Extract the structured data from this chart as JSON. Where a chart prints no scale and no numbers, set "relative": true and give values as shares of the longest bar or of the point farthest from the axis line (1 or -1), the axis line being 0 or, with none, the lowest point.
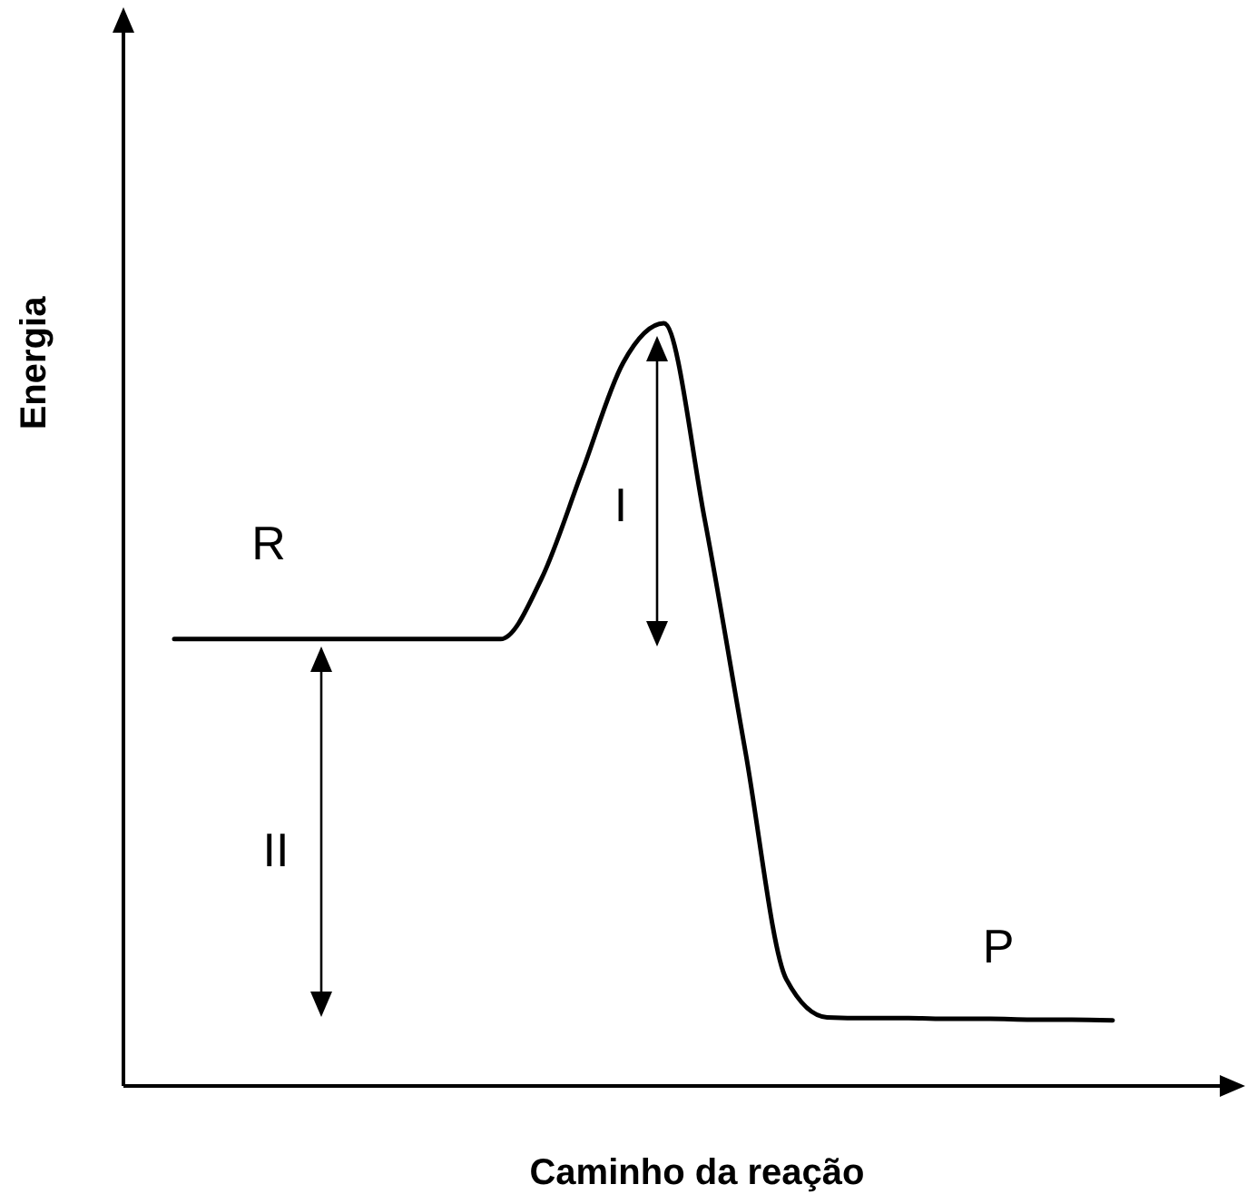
{
  "chart_data": {
    "type": "line",
    "relative": true,
    "xlabel": "Caminho da reação",
    "ylabel": "Energia",
    "categories": [
      null,
      null,
      null,
      null,
      null,
      null,
      null,
      null,
      null,
      null,
      null,
      null,
      null,
      null,
      null,
      null,
      null,
      null,
      null,
      null,
      null,
      null,
      null,
      null
    ],
    "series": [
      {
        "color": "#000000",
        "values": [
          0.586,
          0.586,
          0.586,
          0.586,
          0.586,
          0.586,
          0.586,
          0.586,
          0.586,
          0.665,
          0.806,
          0.948,
          1,
          0.743,
          0.438,
          0.14,
          0.09,
          0.089,
          0.089,
          0.088,
          0.088,
          0.087,
          0.087,
          0.086
        ]
      }
    ],
    "annotations": [
      "R",
      "I",
      "II",
      "P"
    ]
  }
}
